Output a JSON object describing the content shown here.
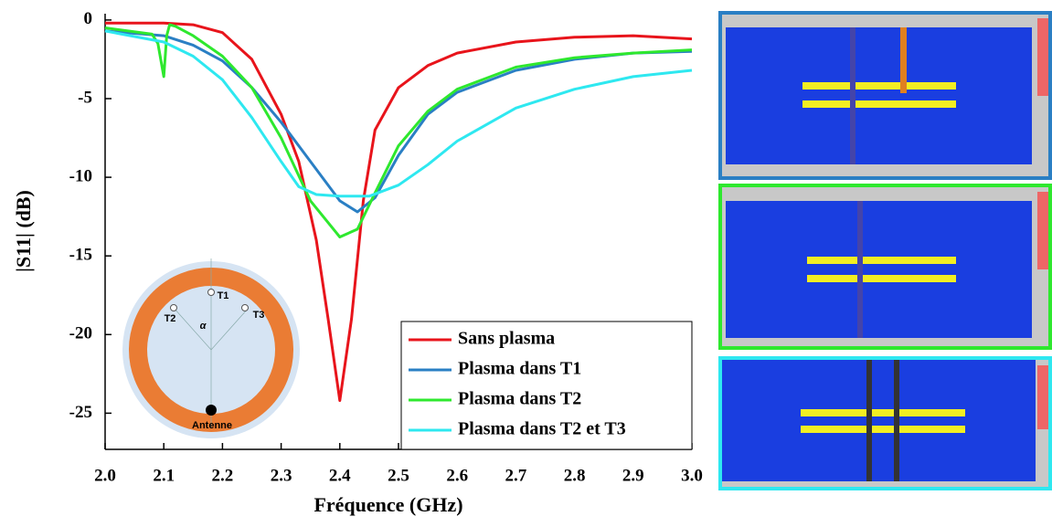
{
  "chart_data": {
    "type": "line",
    "xlabel": "Fréquence (GHz)",
    "ylabel": "|S11| (dB)",
    "xlim": [
      2.0,
      3.0
    ],
    "ylim": [
      -27.3,
      0.4
    ],
    "xticks": [
      {
        "value": 2,
        "label": "2.0"
      },
      2.1,
      2.2,
      2.3,
      2.4,
      2.5,
      2.6,
      2.7,
      2.8,
      2.9,
      {
        "value": 3,
        "label": "3.0"
      }
    ],
    "yticks": [
      0,
      -5,
      -10,
      -15,
      -20,
      -25
    ],
    "legend": "lower right",
    "series": [
      {
        "name": "Sans plasma",
        "color": "#e8141b",
        "x": [
          2.0,
          2.1,
          2.15,
          2.2,
          2.25,
          2.3,
          2.33,
          2.36,
          2.38,
          2.4,
          2.42,
          2.44,
          2.46,
          2.5,
          2.55,
          2.6,
          2.7,
          2.8,
          2.9,
          3.0
        ],
        "values": [
          -0.2,
          -0.2,
          -0.3,
          -0.8,
          -2.5,
          -6,
          -9,
          -14,
          -19,
          -24.2,
          -19,
          -11.5,
          -7,
          -4.3,
          -2.9,
          -2.1,
          -1.4,
          -1.1,
          -1.0,
          -1.2
        ]
      },
      {
        "name": "Plasma dans T1",
        "color": "#2a7fc4",
        "x": [
          2.0,
          2.1,
          2.15,
          2.2,
          2.25,
          2.3,
          2.35,
          2.4,
          2.43,
          2.46,
          2.5,
          2.55,
          2.6,
          2.7,
          2.8,
          2.9,
          3.0
        ],
        "values": [
          -0.7,
          -1.0,
          -1.6,
          -2.6,
          -4.3,
          -6.5,
          -9,
          -11.5,
          -12.2,
          -11.3,
          -8.6,
          -6,
          -4.6,
          -3.2,
          -2.5,
          -2.1,
          -2.0
        ]
      },
      {
        "name": "Plasma dans T2",
        "color": "#2ee82e",
        "x": [
          2.0,
          2.08,
          2.09,
          2.1,
          2.105,
          2.11,
          2.12,
          2.15,
          2.2,
          2.25,
          2.3,
          2.35,
          2.4,
          2.43,
          2.46,
          2.5,
          2.55,
          2.6,
          2.7,
          2.8,
          2.9,
          3.0
        ],
        "values": [
          -0.5,
          -0.9,
          -1.5,
          -3.6,
          -1.0,
          -0.3,
          -0.4,
          -1.0,
          -2.3,
          -4.3,
          -7.5,
          -11.5,
          -13.8,
          -13.3,
          -11,
          -8,
          -5.8,
          -4.4,
          -3.0,
          -2.4,
          -2.1,
          -1.9
        ]
      },
      {
        "name": "Plasma dans T2 et T3",
        "color": "#2ee8f0",
        "x": [
          2.0,
          2.1,
          2.15,
          2.2,
          2.25,
          2.3,
          2.33,
          2.36,
          2.4,
          2.45,
          2.5,
          2.55,
          2.6,
          2.7,
          2.8,
          2.9,
          3.0
        ],
        "values": [
          -0.7,
          -1.4,
          -2.3,
          -3.8,
          -6.2,
          -9,
          -10.6,
          -11.1,
          -11.2,
          -11.2,
          -10.5,
          -9.2,
          -7.7,
          -5.6,
          -4.4,
          -3.6,
          -3.2
        ]
      }
    ]
  },
  "inset": {
    "t1": "T1",
    "t2": "T2",
    "t3": "T3",
    "angle": "α",
    "antenna": "Antenne"
  }
}
